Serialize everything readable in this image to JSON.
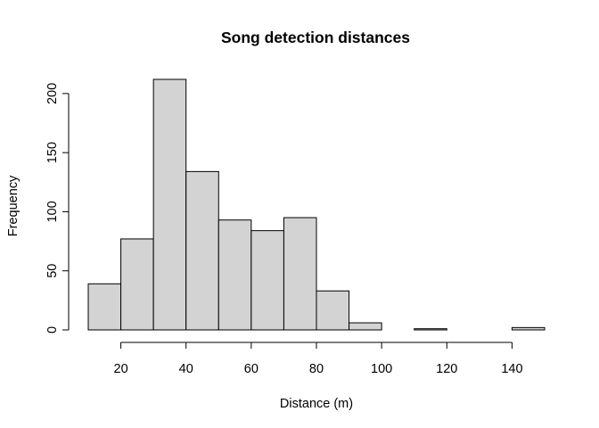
{
  "chart_data": {
    "type": "bar",
    "subtype": "histogram",
    "title": "Song detection distances",
    "xlabel": "Distance (m)",
    "ylabel": "Frequency",
    "bin_edges": [
      10,
      20,
      30,
      40,
      50,
      60,
      70,
      80,
      90,
      100,
      110,
      120,
      130,
      140,
      150
    ],
    "values": [
      39,
      77,
      212,
      134,
      93,
      84,
      95,
      33,
      6,
      0,
      1,
      0,
      0,
      2
    ],
    "xlim": [
      10,
      150
    ],
    "ylim": [
      0,
      212
    ],
    "x_ticks": [
      20,
      40,
      60,
      80,
      100,
      120,
      140
    ],
    "y_ticks": [
      0,
      50,
      100,
      150,
      200
    ],
    "grid": false,
    "bar_color": "#d3d3d3",
    "edge_color": "#000000"
  }
}
